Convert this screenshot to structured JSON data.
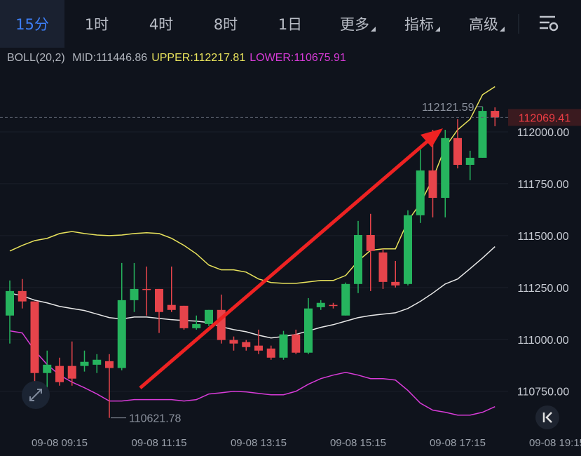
{
  "header": {
    "tabs": [
      "15分",
      "1时",
      "4时",
      "8时",
      "1日",
      "更多",
      "指标",
      "高级"
    ],
    "active_tab": 0
  },
  "chart_data": {
    "type": "candlestick",
    "indicator": "BOLL(20,2)",
    "categories": [
      null,
      null,
      null,
      null,
      "09-08 09:15",
      null,
      null,
      null,
      null,
      null,
      null,
      null,
      "09-08 11:15",
      null,
      null,
      null,
      null,
      null,
      null,
      null,
      "09-08 13:15",
      null,
      null,
      null,
      null,
      null,
      null,
      null,
      "09-08 15:15",
      null,
      null,
      null,
      null,
      null,
      null,
      null,
      "09-08 17:15",
      null,
      null,
      null,
      null,
      null,
      null,
      null,
      "09-08 19:15"
    ],
    "open": [
      111115,
      111233,
      111183,
      110838,
      110872,
      110872,
      110872,
      110878,
      110895,
      110862,
      111189,
      111243,
      111243,
      111166,
      111162,
      111054,
      111074,
      111142,
      110997,
      110987,
      110970,
      110956,
      110912,
      111024,
      110936,
      111155,
      111166,
      111115,
      111267,
      111503,
      111419,
      111277,
      111267,
      111598,
      111814,
      111682,
      111970,
      111841,
      111875,
      112101,
      null,
      null,
      null,
      null,
      null
    ],
    "high": [
      111284,
      111291,
      111183,
      110946,
      110912,
      110990,
      110946,
      110929,
      110929,
      111368,
      111368,
      111351,
      111243,
      111351,
      111162,
      111115,
      111142,
      111216,
      111014,
      110997,
      111047,
      110970,
      111041,
      111047,
      111199,
      111189,
      111176,
      111274,
      111571,
      111605,
      111436,
      111378,
      111622,
      111916,
      112010,
      112010,
      112061,
      111909,
      112121.59,
      112118,
      null,
      null,
      null,
      null,
      null
    ],
    "low": [
      110980,
      111149,
      110743,
      110743,
      110777,
      110777,
      110845,
      110838,
      110621.78,
      110851,
      111132,
      111115,
      111031,
      111132,
      111047,
      111047,
      111064,
      110980,
      110946,
      110946,
      110929,
      110902,
      110902,
      110929,
      110929,
      111142,
      111149,
      111115,
      111223,
      111233,
      111243,
      111250,
      111260,
      111561,
      111588,
      111588,
      111824,
      111767,
      111875,
      112027,
      null,
      null,
      null,
      null,
      null
    ],
    "close": [
      111233,
      111183,
      110838,
      110878,
      110794,
      110811,
      110892,
      110902,
      110862,
      111189,
      111243,
      111240,
      111132,
      111142,
      111054,
      111074,
      111142,
      110997,
      110980,
      110963,
      110946,
      110912,
      111024,
      110936,
      111149,
      111176,
      111162,
      111267,
      111503,
      111426,
      111277,
      111260,
      111598,
      111814,
      111682,
      111970,
      111841,
      111875,
      112101,
      112069.41,
      null,
      null,
      null,
      null,
      null
    ],
    "up_color": "#26b45e",
    "down_color": "#e6444b",
    "series": [
      {
        "name": "MID",
        "legend_label": "MID:111446.86",
        "color": "#e8e8e8",
        "values": [
          111223,
          111210,
          111189,
          111176,
          111159,
          111149,
          111139,
          111122,
          111105,
          111098,
          111108,
          111108,
          111101,
          111095,
          111091,
          111088,
          111081,
          111061,
          111047,
          111037,
          111020,
          111007,
          111014,
          111024,
          111041,
          111058,
          111071,
          111088,
          111105,
          111115,
          111122,
          111128,
          111149,
          111183,
          111223,
          111267,
          111291,
          111341,
          111392,
          111446.86,
          null,
          null,
          null,
          null,
          null
        ]
      },
      {
        "name": "UPPER",
        "legend_label": "UPPER:112217.81",
        "color": "#e9e35c",
        "values": [
          111426,
          111453,
          111476,
          111487,
          111510,
          111520,
          111510,
          111503,
          111500,
          111503,
          111510,
          111514,
          111510,
          111487,
          111453,
          111412,
          111358,
          111335,
          111335,
          111324,
          111291,
          111274,
          111270,
          111270,
          111277,
          111284,
          111284,
          111308,
          111378,
          111429,
          111436,
          111436,
          111571,
          111655,
          111774,
          111926,
          112010,
          112061,
          112179,
          112217.81,
          null,
          null,
          null,
          null,
          null
        ]
      },
      {
        "name": "LOWER",
        "legend_label": "LOWER:110675.91",
        "color": "#d83bd8",
        "values": [
          111041,
          111031,
          110946,
          110879,
          110828,
          110794,
          110767,
          110737,
          110703,
          110703,
          110710,
          110710,
          110710,
          110710,
          110703,
          110710,
          110737,
          110743,
          110750,
          110747,
          110740,
          110733,
          110733,
          110750,
          110784,
          110811,
          110828,
          110841,
          110828,
          110811,
          110811,
          110804,
          110754,
          110693,
          110659,
          110649,
          110635,
          110635,
          110649,
          110675.91,
          null,
          null,
          null,
          null,
          null
        ]
      }
    ],
    "ylim": [
      110570,
      112300
    ],
    "yticks": [
      {
        "value": 110750,
        "label": "110750.00"
      },
      {
        "value": 111000,
        "label": "111000.00"
      },
      {
        "value": 111250,
        "label": "111250.00"
      },
      {
        "value": 111500,
        "label": "111500.00"
      },
      {
        "value": 111750,
        "label": "111750.00"
      },
      {
        "value": 112000,
        "label": "112000.00"
      }
    ],
    "grid": true,
    "annotations": {
      "high_label": "112121.59",
      "low_label": "110621.78",
      "last_price_label": "112069.41"
    }
  }
}
